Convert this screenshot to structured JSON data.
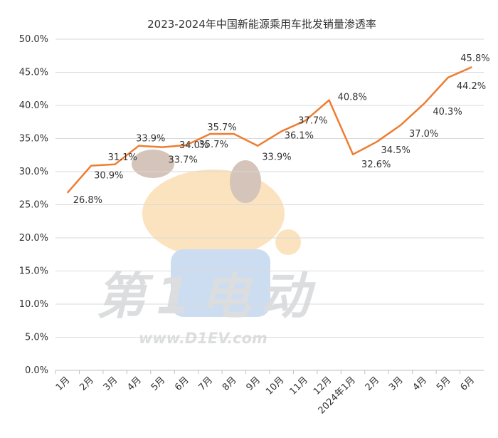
{
  "chart_data": {
    "type": "line",
    "title": "2023-2024年中国新能源乘用车批发销量渗透率",
    "xlabel": "",
    "ylabel": "",
    "categories": [
      "1月",
      "2月",
      "3月",
      "4月",
      "5月",
      "6月",
      "7月",
      "8月",
      "9月",
      "10月",
      "11月",
      "12月",
      "2024年1月",
      "2月",
      "3月",
      "4月",
      "5月",
      "6月"
    ],
    "series": [
      {
        "values": [
          26.8,
          30.9,
          31.1,
          33.9,
          33.7,
          34.0,
          35.7,
          35.7,
          33.9,
          36.1,
          37.7,
          40.8,
          32.6,
          34.5,
          37.0,
          40.3,
          44.2,
          45.8
        ]
      }
    ],
    "data_labels": [
      "26.8%",
      "30.9%",
      "31.1%",
      "33.9%",
      "33.7%",
      "34.0%",
      "35.7%",
      "35.7%",
      "33.9%",
      "36.1%",
      "37.7%",
      "40.8%",
      "32.6%",
      "34.5%",
      "37.0%",
      "40.3%",
      "44.2%",
      "45.8%"
    ],
    "ylim": [
      0,
      50
    ],
    "yticks": [
      "0.0%",
      "5.0%",
      "10.0%",
      "15.0%",
      "20.0%",
      "25.0%",
      "30.0%",
      "35.0%",
      "40.0%",
      "45.0%",
      "50.0%"
    ],
    "grid": true,
    "line_color": "#ED7D31"
  },
  "watermark": {
    "text_main": "第1电动",
    "url": "www.D1EV.com"
  }
}
